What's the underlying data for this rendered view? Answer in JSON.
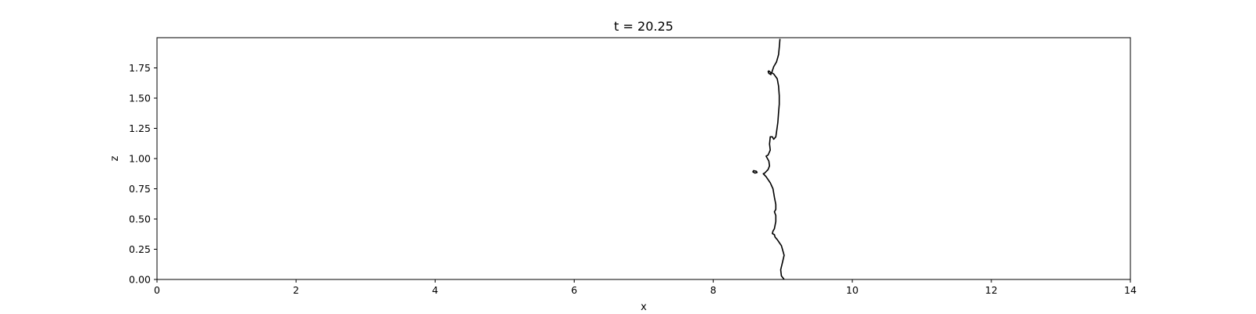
{
  "chart_data": {
    "type": "line",
    "title": "t = 20.25",
    "xlabel": "x",
    "ylabel": "z",
    "xlim": [
      0,
      14
    ],
    "ylim": [
      0,
      2
    ],
    "x_ticks": [
      0,
      2,
      4,
      6,
      8,
      10,
      12,
      14
    ],
    "x_tick_labels": [
      "0",
      "2",
      "4",
      "6",
      "8",
      "10",
      "12",
      "14"
    ],
    "y_ticks": [
      0,
      0.25,
      0.5,
      0.75,
      1.0,
      1.25,
      1.5,
      1.75
    ],
    "y_tick_labels": [
      "0.00",
      "0.25",
      "0.50",
      "0.75",
      "1.00",
      "1.25",
      "1.50",
      "1.75"
    ],
    "grid": false,
    "line_color": "#000000",
    "series": [
      {
        "points": [
          [
            9.02,
            0.0
          ],
          [
            8.98,
            0.03
          ],
          [
            8.97,
            0.08
          ],
          [
            9.0,
            0.15
          ],
          [
            9.02,
            0.2
          ],
          [
            8.98,
            0.28
          ],
          [
            8.92,
            0.33
          ],
          [
            8.89,
            0.35
          ],
          [
            8.88,
            0.37
          ],
          [
            8.85,
            0.38
          ],
          [
            8.86,
            0.4
          ],
          [
            8.88,
            0.42
          ],
          [
            8.89,
            0.45
          ],
          [
            8.9,
            0.48
          ],
          [
            8.9,
            0.53
          ],
          [
            8.88,
            0.56
          ],
          [
            8.9,
            0.58
          ],
          [
            8.9,
            0.62
          ],
          [
            8.88,
            0.68
          ],
          [
            8.86,
            0.75
          ],
          [
            8.82,
            0.8
          ],
          [
            8.76,
            0.85
          ],
          [
            8.72,
            0.875
          ],
          [
            8.74,
            0.88
          ],
          [
            8.79,
            0.91
          ],
          [
            8.81,
            0.94
          ],
          [
            8.8,
            0.98
          ],
          [
            8.76,
            1.02
          ],
          [
            8.79,
            1.03
          ],
          [
            8.82,
            1.07
          ],
          [
            8.81,
            1.12
          ],
          [
            8.82,
            1.18
          ],
          [
            8.85,
            1.18
          ],
          [
            8.87,
            1.16
          ],
          [
            8.9,
            1.18
          ],
          [
            8.91,
            1.22
          ],
          [
            8.93,
            1.3
          ],
          [
            8.94,
            1.38
          ],
          [
            8.95,
            1.45
          ],
          [
            8.95,
            1.52
          ],
          [
            8.94,
            1.6
          ],
          [
            8.92,
            1.66
          ],
          [
            8.87,
            1.7
          ],
          [
            8.84,
            1.71
          ],
          [
            8.87,
            1.76
          ],
          [
            8.91,
            1.8
          ],
          [
            8.94,
            1.86
          ],
          [
            8.95,
            1.92
          ],
          [
            8.96,
            1.99
          ]
        ]
      },
      {
        "closed": true,
        "points": [
          [
            8.8,
            1.725
          ],
          [
            8.83,
            1.71
          ],
          [
            8.83,
            1.695
          ],
          [
            8.8,
            1.705
          ],
          [
            8.79,
            1.72
          ]
        ]
      },
      {
        "closed": true,
        "points": [
          [
            8.58,
            0.9
          ],
          [
            8.62,
            0.895
          ],
          [
            8.63,
            0.885
          ],
          [
            8.6,
            0.88
          ],
          [
            8.57,
            0.89
          ]
        ]
      }
    ]
  }
}
